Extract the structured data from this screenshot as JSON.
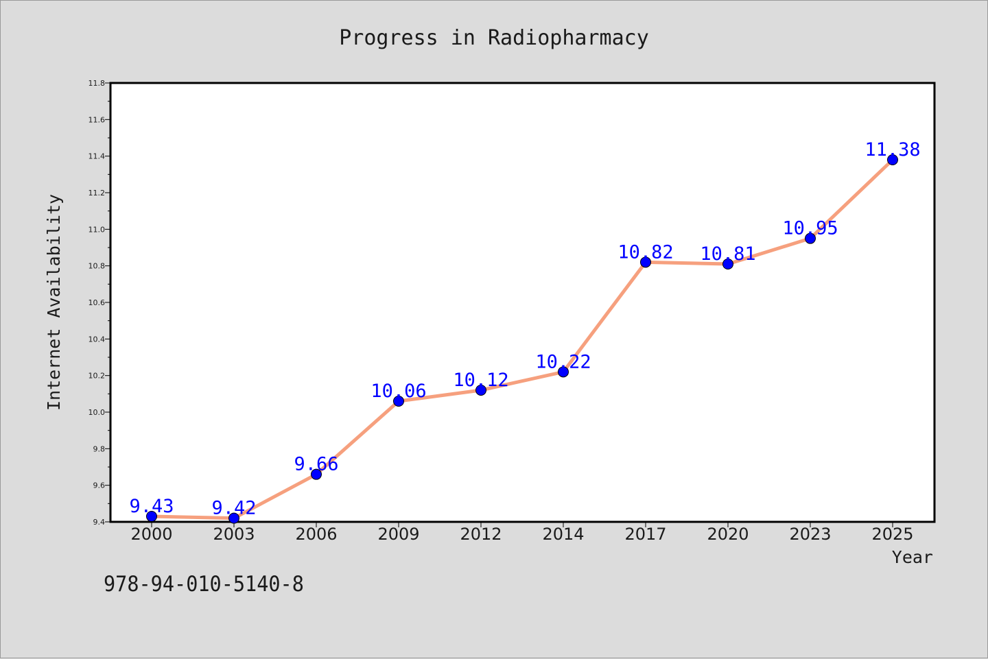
{
  "colors": {
    "background": "#dcdcdc",
    "plot_background": "#ffffff",
    "line": "#f6a07e",
    "marker": "#0000ff",
    "data_label": "#0000ff",
    "text": "#1a1a1a"
  },
  "chart_data": {
    "type": "line",
    "title": "Progress in Radiopharmacy",
    "xlabel": "Year",
    "ylabel": "Internet Availability",
    "categories": [
      "2000",
      "2003",
      "2006",
      "2009",
      "2012",
      "2014",
      "2017",
      "2020",
      "2023",
      "2025"
    ],
    "series": [
      {
        "values": [
          9.43,
          9.42,
          9.66,
          10.06,
          10.12,
          10.22,
          10.82,
          10.81,
          10.95,
          11.38
        ],
        "labels": [
          "9.43",
          "9.42",
          "9.66",
          "10.06",
          "10.12",
          "10.22",
          "10.82",
          "10.81",
          "10.95",
          "11.38"
        ]
      }
    ],
    "ylim": [
      9.4,
      11.8
    ],
    "yticks": [
      "9.4",
      "9.6",
      "9.8",
      "10.0",
      "10.2",
      "10.4",
      "10.6",
      "10.8",
      "11.0",
      "11.2",
      "11.4",
      "11.6",
      "11.8"
    ],
    "grid": false,
    "legend": "none"
  },
  "footer": {
    "isbn": "978-94-010-5140-8"
  }
}
